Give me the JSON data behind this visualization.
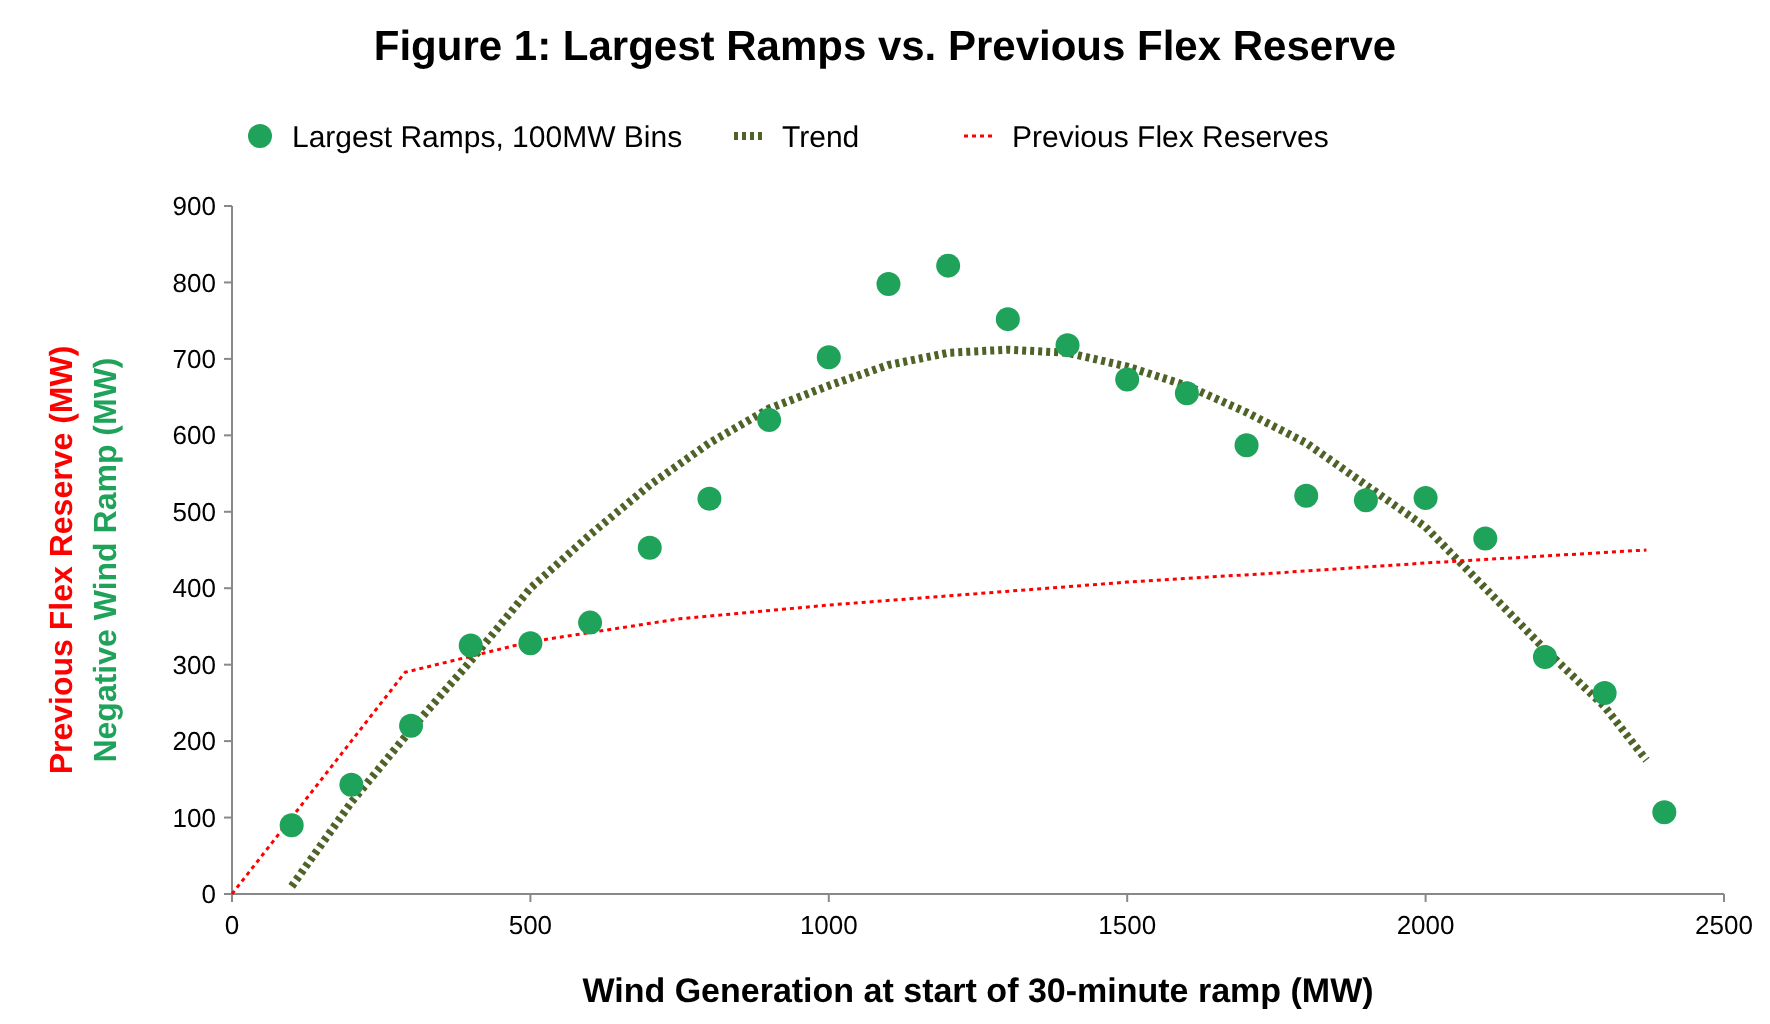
{
  "chart_data": {
    "type": "scatter",
    "title": "Figure 1: Largest Ramps vs. Previous Flex Reserve",
    "xlabel": "Wind Generation at start of 30-minute ramp (MW)",
    "ylabel": "Negative Wind Ramp (MW)",
    "annotations": [
      "Previous Flex Reserve (MW)"
    ],
    "xlim": [
      0,
      2500
    ],
    "xticks": [
      0,
      500,
      1000,
      1500,
      2000,
      2500
    ],
    "ylim": [
      0,
      900
    ],
    "yticks": [
      0,
      100,
      200,
      300,
      400,
      500,
      600,
      700,
      800,
      900
    ],
    "grid": false,
    "legend": "top",
    "marker": "circle",
    "series": [
      {
        "name": "Largest Ramps, 100MW Bins",
        "color": "#1fa35a",
        "x": [
          100,
          200,
          300,
          400,
          500,
          600,
          700,
          800,
          900,
          1000,
          1100,
          1200,
          1300,
          1400,
          1500,
          1600,
          1700,
          1800,
          1900,
          2000,
          2100,
          2200,
          2300,
          2400
        ],
        "values": [
          90,
          143,
          220,
          325,
          328,
          355,
          453,
          517,
          620,
          702,
          798,
          822,
          752,
          718,
          673,
          655,
          587,
          521,
          515,
          518,
          465,
          310,
          263,
          107
        ]
      },
      {
        "name": "Trend",
        "type": "line",
        "color": "#4f6228",
        "line_style": "dotted",
        "marker": "none",
        "x": [
          100,
          200,
          300,
          400,
          500,
          600,
          700,
          800,
          900,
          1000,
          1100,
          1200,
          1300,
          1400,
          1500,
          1600,
          1700,
          1800,
          1900,
          2000,
          2100,
          2200,
          2300,
          2370
        ],
        "values": [
          10,
          120,
          215,
          305,
          400,
          470,
          535,
          590,
          635,
          665,
          692,
          708,
          712,
          708,
          690,
          665,
          630,
          590,
          535,
          480,
          400,
          320,
          245,
          175
        ]
      },
      {
        "name": "Previous Flex Reserves",
        "type": "line",
        "color": "#ff0000",
        "line_style": "dotted",
        "marker": "none",
        "x": [
          0,
          290,
          500,
          750,
          1000,
          1250,
          1500,
          1750,
          2000,
          2370
        ],
        "values": [
          0,
          290,
          330,
          360,
          378,
          393,
          408,
          420,
          433,
          450
        ]
      }
    ]
  }
}
